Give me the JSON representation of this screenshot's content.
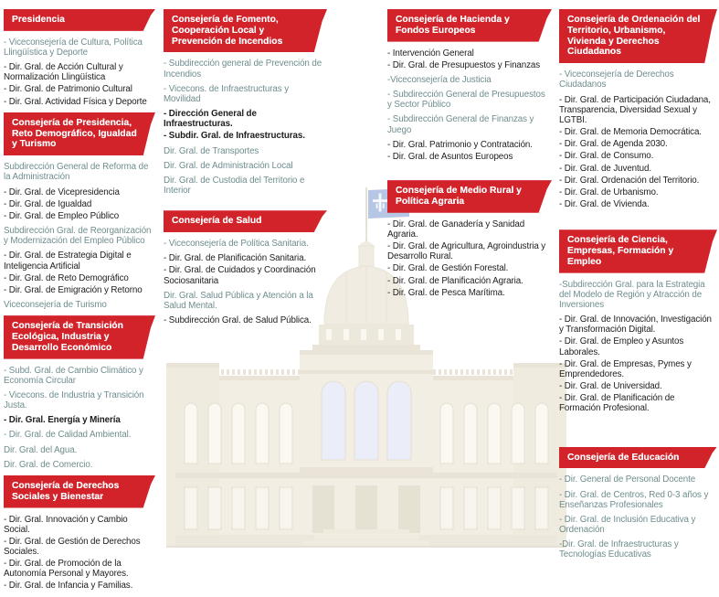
{
  "title": "Organigrama del Gobierno del Principado de Asturias",
  "palette": {
    "banner_red": "#d2232b",
    "text_dark": "#1d1d1b",
    "text_teal": "#6f8d8e",
    "flag_blue": "#8aa4d6",
    "building_tint": "#ebe4d4"
  },
  "icons": {
    "flag": "asturias-flag-icon",
    "building": "government-building-illustration"
  },
  "columns": [
    {
      "sections": [
        {
          "header": "Presidencia",
          "items": [
            {
              "text": "- Viceconsejería de Cultura, Política Llingüística y Deporte",
              "style": "teal"
            },
            {
              "text": "- Dir. Gral. de Acción Cultural y Normalización Llingüística",
              "style": "dark"
            },
            {
              "text": "- Dir. Gral. de Patrimonio Cultural",
              "style": "dark"
            },
            {
              "text": "- Dir. Gral. Actividad Física y Deporte",
              "style": "dark"
            }
          ]
        },
        {
          "header": "Consejería de Presidencia, Reto Demográfico, Igualdad y Turismo",
          "items": [
            {
              "text": "Subdirección General de Reforma de la Administración",
              "style": "teal"
            },
            {
              "text": "- Dir. Gral. de Vicepresidencia",
              "style": "dark"
            },
            {
              "text": "- Dir. Gral. de Igualdad",
              "style": "dark"
            },
            {
              "text": "- Dir. Gral. de Empleo Público",
              "style": "dark"
            },
            {
              "text": "Subdirección Gral. de Reorganización y Modernización del Empleo Público",
              "style": "teal"
            },
            {
              "text": "- Dir. Gral. de Estrategia Digital e Inteligencia Artificial",
              "style": "dark"
            },
            {
              "text": "- Dir. Gral. de Reto Demográfico",
              "style": "dark"
            },
            {
              "text": "- Dir. Gral. de Emigración y Retorno",
              "style": "dark"
            },
            {
              "text": "Viceconsejería de Turismo",
              "style": "teal"
            }
          ]
        },
        {
          "header": "Consejería de Transición Ecológica, Industria y Desarrollo Económico",
          "items": [
            {
              "text": "- Subd. Gral. de Cambio Climático y Economía Circular",
              "style": "teal"
            },
            {
              "text": "- Vicecons. de Industria y Transición Justa.",
              "style": "teal"
            },
            {
              "text": "- Dir. Gral. Energía y Minería",
              "style": "dark",
              "bold": true
            },
            {
              "text": "- Dir. Gral. de Calidad Ambiental.",
              "style": "teal"
            },
            {
              "text": "Dir. Gral. del Agua.",
              "style": "teal"
            },
            {
              "text": "Dir. Gral. de Comercio.",
              "style": "teal"
            }
          ]
        },
        {
          "header": "Consejería de Derechos Sociales y Bienestar",
          "items": [
            {
              "text": "- Dir. Gral. Innovación y Cambio Social.",
              "style": "dark"
            },
            {
              "text": "- Dir. Gral. de Gestión de Derechos Sociales.",
              "style": "dark"
            },
            {
              "text": "- Dir. Gral. de Promoción de la Autonomía Personal y Mayores.",
              "style": "dark"
            },
            {
              "text": "- Dir. Gral. de Infancia y Familias.",
              "style": "dark"
            }
          ]
        }
      ]
    },
    {
      "sections": [
        {
          "header": "Consejería de Fomento, Cooperación Local y Prevención de Incendios",
          "items": [
            {
              "text": "- Subdirección general de Prevención de Incendios",
              "style": "teal"
            },
            {
              "text": "- Vicecons. de Infraestructuras y Movilidad",
              "style": "teal"
            },
            {
              "text": "- Dirección General de Infraestructuras.",
              "style": "dark",
              "bold": true
            },
            {
              "text": "- Subdir. Gral. de Infraestructuras.",
              "style": "dark",
              "bold": true
            },
            {
              "text": "Dir. Gral. de Transportes",
              "style": "teal"
            },
            {
              "text": "Dir. Gral. de Administración Local",
              "style": "teal"
            },
            {
              "text": "Dir. Gral. de Custodia del Territorio e Interior",
              "style": "teal"
            }
          ]
        },
        {
          "header": "Consejería de Salud",
          "items": [
            {
              "text": "- Viceconsejería de Política Sanitaria.",
              "style": "teal"
            },
            {
              "text": "- Dir. Gral. de Planificación Sanitaria.",
              "style": "dark"
            },
            {
              "text": "- Dir. Gral. de Cuidados y Coordinación Sociosanitaria",
              "style": "dark"
            },
            {
              "text": "Dir. Gral. Salud Pública y Atención a la Salud Mental.",
              "style": "teal"
            },
            {
              "text": "- Subdirección Gral. de Salud Pública.",
              "style": "dark"
            }
          ]
        }
      ]
    },
    {
      "sections": [
        {
          "header": "Consejería de Hacienda y Fondos Europeos",
          "items": [
            {
              "text": "- Intervención General",
              "style": "dark"
            },
            {
              "text": "- Dir. Gral. de Presupuestos y Finanzas",
              "style": "dark"
            },
            {
              "text": "-Viceconsejería de Justicia",
              "style": "teal"
            },
            {
              "text": "- Subdirección General de Presupuestos y Sector Público",
              "style": "teal"
            },
            {
              "text": "- Subdirección General de Finanzas y Juego",
              "style": "teal"
            },
            {
              "text": "- Dir. Gral. Patrimonio y Contratación.",
              "style": "dark"
            },
            {
              "text": "- Dir. Gral. de Asuntos Europeos",
              "style": "dark"
            }
          ]
        },
        {
          "header": "Consejería de Medio Rural y Política Agraria",
          "items": [
            {
              "text": "- Dir. Gral. de Ganadería y Sanidad Agraria.",
              "style": "dark"
            },
            {
              "text": "- Dir. Gral. de Agricultura, Agroindustria y Desarrollo Rural.",
              "style": "dark"
            },
            {
              "text": "- Dir. Gral. de Gestión Forestal.",
              "style": "dark"
            },
            {
              "text": "- Dir. Gral. de Planificación Agraria.",
              "style": "dark"
            },
            {
              "text": "- Dir. Gral. de Pesca Marítima.",
              "style": "dark"
            }
          ]
        }
      ]
    },
    {
      "sections": [
        {
          "header": "Consejería de Ordenación del Territorio, Urbanismo, Vivienda y Derechos Ciudadanos",
          "items": [
            {
              "text": "- Viceconsejería de Derechos Ciudadanos",
              "style": "teal"
            },
            {
              "text": "- Dir. Gral. de Participación Ciudadana, Transparencia, Diversidad Sexual y LGTBI.",
              "style": "dark"
            },
            {
              "text": "- Dir. Gral. de Memoria Democrática.",
              "style": "dark"
            },
            {
              "text": "- Dir. Gral. de Agenda 2030.",
              "style": "dark"
            },
            {
              "text": "- Dir. Gral. de Consumo.",
              "style": "dark"
            },
            {
              "text": "- Dir. Gral. de Juventud.",
              "style": "dark"
            },
            {
              "text": "- Dir. Gral. Ordenación del Territorio.",
              "style": "dark"
            },
            {
              "text": "- Dir. Gral. de Urbanismo.",
              "style": "dark"
            },
            {
              "text": "- Dir. Gral. de Vivienda.",
              "style": "dark"
            }
          ]
        },
        {
          "header": "Consejería de Ciencia, Empresas, Formación y Empleo",
          "items": [
            {
              "text": "-Subdirección Gral. para la Estrategia del Modelo de Región y Atracción de Inversiones",
              "style": "teal"
            },
            {
              "text": "- Dir. Gral. de Innovación, Investigación y Transformación Digital.",
              "style": "dark"
            },
            {
              "text": "- Dir. Gral. de Empleo y Asuntos Laborales.",
              "style": "dark"
            },
            {
              "text": "- Dir. Gral. de Empresas, Pymes y Emprendedores.",
              "style": "dark"
            },
            {
              "text": "- Dir. Gral. de Universidad.",
              "style": "dark"
            },
            {
              "text": "- Dir. Gral. de Planificación de Formación Profesional.",
              "style": "dark"
            }
          ]
        },
        {
          "header": "Consejería de Educación",
          "items": [
            {
              "text": "- Dir. General de Personal Docente",
              "style": "teal"
            },
            {
              "text": "- Dir. Gral. de Centros, Red 0-3 años y Enseñanzas Profesionales",
              "style": "teal"
            },
            {
              "text": "- Dir. Gral. de Inclusión Educativa y Ordenación",
              "style": "teal"
            },
            {
              "text": "-Dir. Gral. de Infraestructuras y Tecnologías Educativas",
              "style": "teal"
            }
          ]
        }
      ]
    }
  ]
}
